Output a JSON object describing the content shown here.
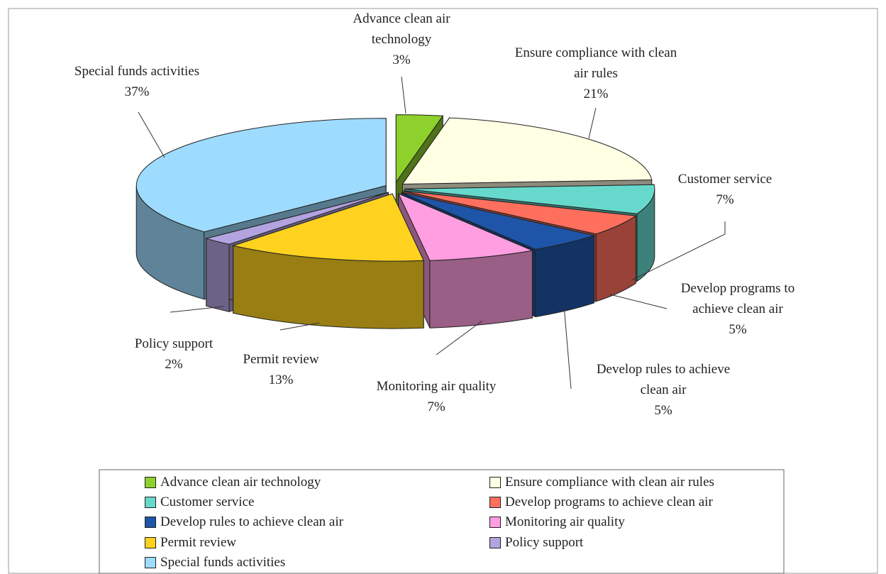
{
  "chart_data": {
    "type": "pie3d",
    "categories": [
      "Advance clean air technology",
      "Ensure compliance with clean air rules",
      "Customer service",
      "Develop programs to achieve clean air",
      "Develop rules to achieve clean air",
      "Monitoring air quality",
      "Permit review",
      "Policy support",
      "Special funds activities"
    ],
    "values": [
      3,
      21,
      7,
      5,
      5,
      7,
      13,
      2,
      37
    ],
    "value_labels": [
      "3%",
      "21%",
      "7%",
      "5%",
      "5%",
      "7%",
      "13%",
      "2%",
      "37%"
    ],
    "colors": [
      "#8fd12c",
      "#ffffe4",
      "#66d9cc",
      "#ff6f5e",
      "#1f55a8",
      "#ff9ee0",
      "#ffd21f",
      "#b3a3e0",
      "#9edcff"
    ],
    "legend": "bottom"
  }
}
